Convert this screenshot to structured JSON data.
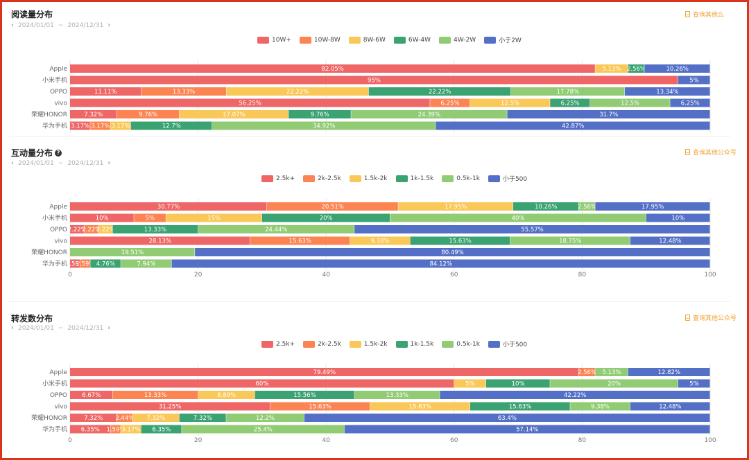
{
  "colors": [
    "#ee6666",
    "#fc8452",
    "#fac858",
    "#3ba272",
    "#91cc75",
    "#5470c6"
  ],
  "charts": [
    {
      "title": "阅读量分布",
      "has_help": false,
      "date_start": "2024/01/01",
      "date_sep": "~",
      "date_end": "2024/12/31",
      "nav_prev": "‹",
      "nav_next": "›",
      "query_label": "查询其他么"
    },
    {
      "title": "互动量分布",
      "has_help": true,
      "help_glyph": "?",
      "date_start": "2024/01/01",
      "date_sep": "~",
      "date_end": "2024/12/31",
      "nav_prev": "‹",
      "nav_next": "›",
      "query_label": "查询其他公众号"
    },
    {
      "title": "转发数分布",
      "has_help": false,
      "date_start": "2024/01/01",
      "date_sep": "~",
      "date_end": "2024/12/31",
      "nav_prev": "‹",
      "nav_next": "›",
      "query_label": "查询其他公众号"
    }
  ],
  "chart_data": [
    {
      "type": "bar",
      "orientation": "horizontal",
      "stacked": true,
      "title": "阅读量分布",
      "categories": [
        "Apple",
        "小米手机",
        "OPPO",
        "vivo",
        "荣耀HONOR",
        "华为手机"
      ],
      "xlim": [
        0,
        100
      ],
      "show_x_axis": false,
      "series": [
        {
          "name": "10W+",
          "values": [
            82.05,
            95,
            11.11,
            56.25,
            7.32,
            3.17
          ],
          "labels": [
            "82.05%",
            "95%",
            "11.11%",
            "56.25%",
            "7.32%",
            "3.17%"
          ]
        },
        {
          "name": "10W-8W",
          "values": [
            0,
            0,
            13.33,
            6.25,
            9.76,
            3.17
          ],
          "labels": [
            "",
            "",
            "13.33%",
            "6.25%",
            "9.76%",
            "3.17%"
          ]
        },
        {
          "name": "8W-6W",
          "values": [
            5.13,
            0,
            22.22,
            12.5,
            17.07,
            3.17
          ],
          "labels": [
            "5.13%",
            "",
            "22.22%",
            "12.5%",
            "17.07%",
            "3.17%"
          ]
        },
        {
          "name": "6W-4W",
          "values": [
            2.56,
            0,
            22.22,
            6.25,
            9.76,
            12.7
          ],
          "labels": [
            "2.56%",
            "",
            "22.22%",
            "6.25%",
            "9.76%",
            "12.7%"
          ]
        },
        {
          "name": "4W-2W",
          "values": [
            0,
            0,
            17.78,
            12.5,
            24.39,
            34.92
          ],
          "labels": [
            "",
            "",
            "17.78%",
            "12.5%",
            "24.39%",
            "34.92%"
          ]
        },
        {
          "name": "小于2W",
          "values": [
            10.26,
            5,
            13.34,
            6.25,
            31.7,
            42.87
          ],
          "labels": [
            "10.26%",
            "5%",
            "13.34%",
            "6.25%",
            "31.7%",
            "42.87%"
          ]
        }
      ]
    },
    {
      "type": "bar",
      "orientation": "horizontal",
      "stacked": true,
      "title": "互动量分布",
      "categories": [
        "Apple",
        "小米手机",
        "OPPO",
        "vivo",
        "荣耀HONOR",
        "华为手机"
      ],
      "xlim": [
        0,
        100
      ],
      "xticks": [
        "0",
        "20",
        "40",
        "60",
        "80",
        "100"
      ],
      "show_x_axis": true,
      "series": [
        {
          "name": "2.5k+",
          "values": [
            30.77,
            10,
            2.22,
            28.13,
            0,
            1.59
          ],
          "labels": [
            "30.77%",
            "10%",
            "2.22%",
            "28.13%",
            "",
            "1.59%"
          ]
        },
        {
          "name": "2k-2.5k",
          "values": [
            20.51,
            5,
            2.22,
            15.63,
            0,
            1.59
          ],
          "labels": [
            "20.51%",
            "5%",
            "2.22%",
            "15.63%",
            "",
            "1.59%"
          ]
        },
        {
          "name": "1.5k-2k",
          "values": [
            17.95,
            15,
            2.22,
            9.38,
            0,
            0
          ],
          "labels": [
            "17.95%",
            "15%",
            "2.22%",
            "9.38%",
            "",
            ""
          ]
        },
        {
          "name": "1k-1.5k",
          "values": [
            10.26,
            20,
            13.33,
            15.63,
            0,
            4.76
          ],
          "labels": [
            "10.26%",
            "20%",
            "13.33%",
            "15.63%",
            "",
            "4.76%"
          ]
        },
        {
          "name": "0.5k-1k",
          "values": [
            2.56,
            40,
            24.44,
            18.75,
            19.51,
            7.94
          ],
          "labels": [
            "2.56%",
            "40%",
            "24.44%",
            "18.75%",
            "19.51%",
            "7.94%"
          ]
        },
        {
          "name": "小于500",
          "values": [
            17.95,
            10,
            55.57,
            12.48,
            80.49,
            84.12
          ],
          "labels": [
            "17.95%",
            "10%",
            "55.57%",
            "12.48%",
            "80.49%",
            "84.12%"
          ]
        }
      ]
    },
    {
      "type": "bar",
      "orientation": "horizontal",
      "stacked": true,
      "title": "转发数分布",
      "categories": [
        "Apple",
        "小米手机",
        "OPPO",
        "vivo",
        "荣耀HONOR",
        "华为手机"
      ],
      "xlim": [
        0,
        100
      ],
      "xticks": [
        "0",
        "20",
        "40",
        "60",
        "80",
        "100"
      ],
      "show_x_axis": true,
      "series": [
        {
          "name": "2.5k+",
          "values": [
            79.49,
            60,
            6.67,
            31.25,
            7.32,
            6.35
          ],
          "labels": [
            "79.49%",
            "60%",
            "6.67%",
            "31.25%",
            "7.32%",
            "6.35%"
          ]
        },
        {
          "name": "2k-2.5k",
          "values": [
            2.56,
            0,
            13.33,
            15.63,
            2.44,
            1.59
          ],
          "labels": [
            "2.56%",
            "",
            "13.33%",
            "15.63%",
            "2.44%",
            "1.59%"
          ]
        },
        {
          "name": "1.5k-2k",
          "values": [
            0,
            5,
            8.89,
            15.63,
            7.32,
            3.17
          ],
          "labels": [
            "",
            "5%",
            "8.89%",
            "15.63%",
            "7.32%",
            "3.17%"
          ]
        },
        {
          "name": "1k-1.5k",
          "values": [
            0,
            10,
            15.56,
            15.63,
            7.32,
            6.35
          ],
          "labels": [
            "",
            "10%",
            "15.56%",
            "15.63%",
            "7.32%",
            "6.35%"
          ]
        },
        {
          "name": "0.5k-1k",
          "values": [
            5.13,
            20,
            13.33,
            9.38,
            12.2,
            25.4
          ],
          "labels": [
            "5.13%",
            "20%",
            "13.33%",
            "9.38%",
            "12.2%",
            "25.4%"
          ]
        },
        {
          "name": "小于500",
          "values": [
            12.82,
            5,
            42.22,
            12.48,
            63.4,
            57.14
          ],
          "labels": [
            "12.82%",
            "5%",
            "42.22%",
            "12.48%",
            "63.4%",
            "57.14%"
          ]
        }
      ]
    }
  ]
}
